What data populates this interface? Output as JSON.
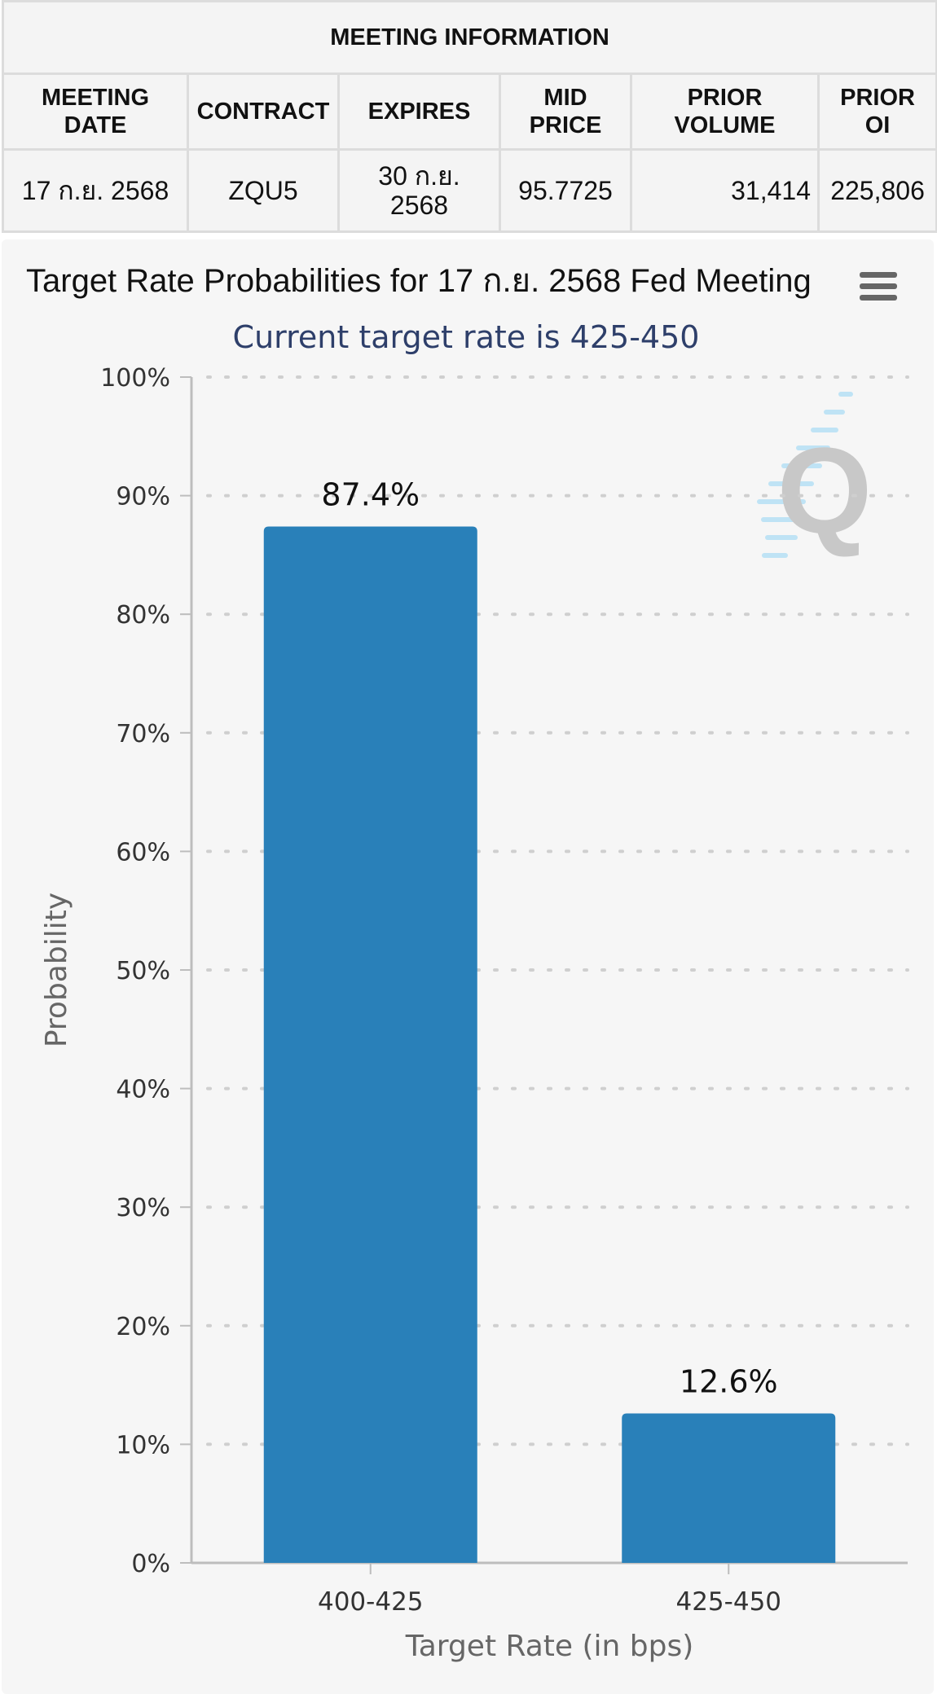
{
  "meeting_info": {
    "title": "MEETING INFORMATION",
    "headers": [
      {
        "line1": "MEETING",
        "line2": "DATE"
      },
      {
        "line1": "CONTRACT",
        "line2": ""
      },
      {
        "line1": "EXPIRES",
        "line2": ""
      },
      {
        "line1": "MID",
        "line2": "PRICE"
      },
      {
        "line1": "PRIOR",
        "line2": "VOLUME"
      },
      {
        "line1": "PRIOR",
        "line2": "OI"
      }
    ],
    "row": {
      "meeting_date": "17 ก.ย. 2568",
      "contract": "ZQU5",
      "expires_line1": "30 ก.ย.",
      "expires_line2": "2568",
      "mid_price": "95.7725",
      "prior_volume": "31,414",
      "prior_oi": "225,806"
    }
  },
  "chart_menu_icon": "hamburger-menu-icon",
  "watermark_icon": "q-logo-icon",
  "colors": {
    "bar": "#2980b9",
    "axis": "#bdbdbd",
    "grid": "#cfcfcf",
    "subtitle": "#2e3f6a"
  },
  "chart_data": {
    "type": "bar",
    "title": "Target Rate Probabilities for 17 ก.ย. 2568 Fed Meeting",
    "subtitle": "Current target rate is 425-450",
    "categories": [
      "400-425",
      "425-450"
    ],
    "values": [
      87.4,
      12.6
    ],
    "data_labels": [
      "87.4%",
      "12.6%"
    ],
    "xlabel": "Target Rate (in bps)",
    "ylabel": "Probability",
    "ylim": [
      0,
      100
    ],
    "yticks": [
      "0%",
      "10%",
      "20%",
      "30%",
      "40%",
      "50%",
      "60%",
      "70%",
      "80%",
      "90%",
      "100%"
    ],
    "grid": true
  }
}
